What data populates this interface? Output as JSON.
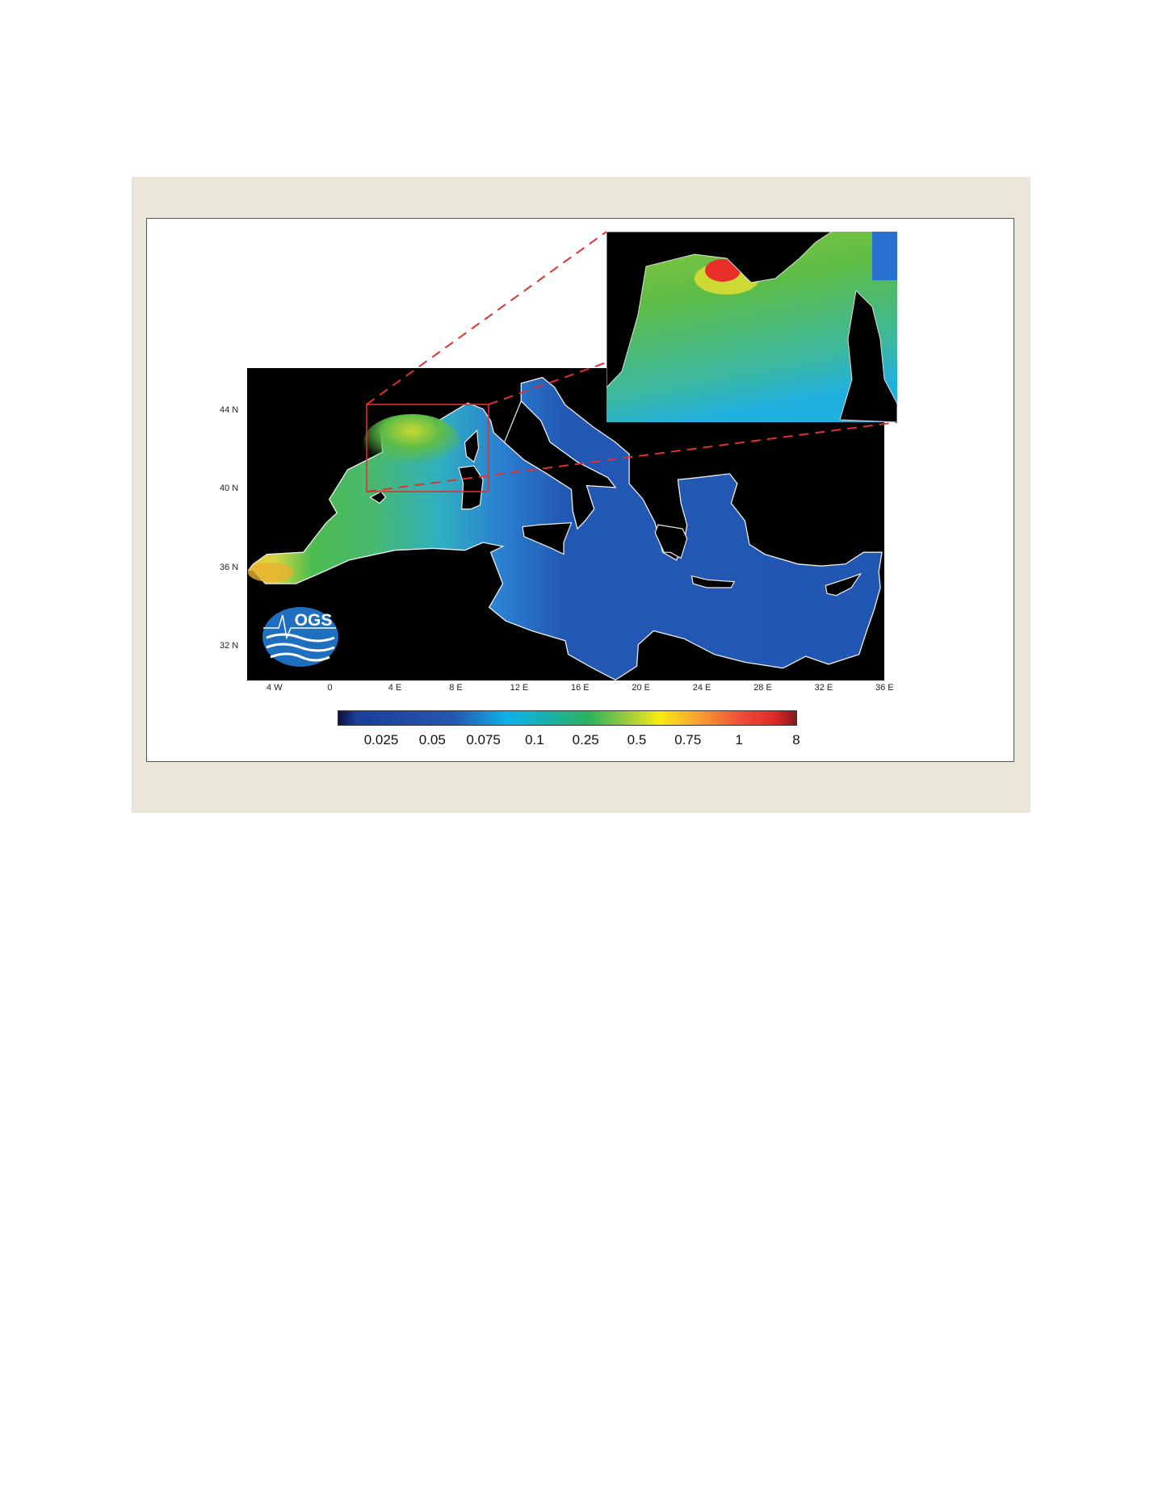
{
  "figure": {
    "logo_text": "OGS",
    "x_ticks": [
      "4 W",
      "0",
      "4 E",
      "8 E",
      "12 E",
      "16 E",
      "20 E",
      "24 E",
      "28 E",
      "32 E",
      "36 E"
    ],
    "y_ticks": [
      "44 N",
      "40 N",
      "36 N",
      "32 N"
    ],
    "colorbar_ticks": [
      "0.025",
      "0.05",
      "0.075",
      "0.1",
      "0.25",
      "0.5",
      "0.75",
      "1",
      "8"
    ],
    "colors": {
      "background": "#ebe6da",
      "land": "#000000",
      "coast": "#ffffff",
      "zoom_box": "#e03030",
      "sea_east": "#2258b4",
      "sea_west": "#3fb860"
    }
  }
}
